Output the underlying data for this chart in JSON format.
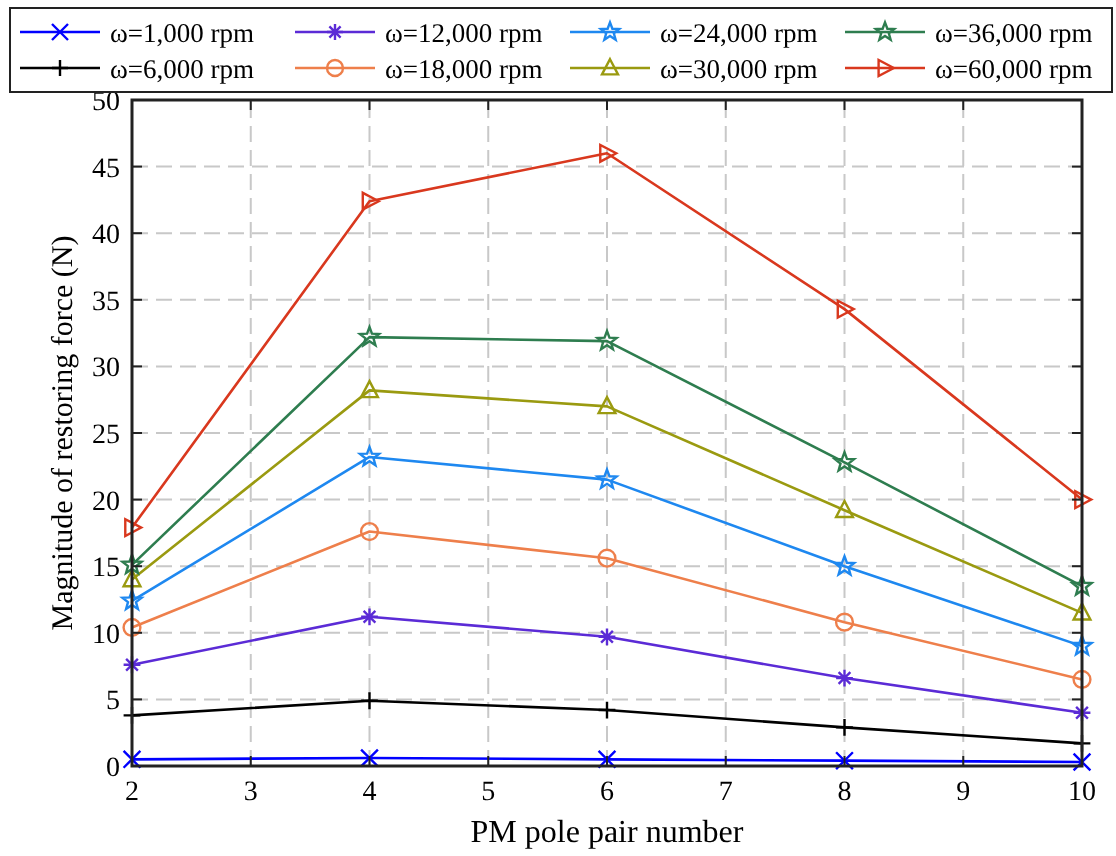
{
  "chart_data": {
    "type": "line",
    "xlabel": "PM pole pair number",
    "ylabel": "Magnitude of restoring force (N)",
    "x": [
      2,
      4,
      6,
      8,
      10
    ],
    "xlim": [
      2,
      10
    ],
    "xticks": [
      2,
      3,
      4,
      5,
      6,
      7,
      8,
      9,
      10
    ],
    "ylim": [
      0,
      50
    ],
    "yticks": [
      0,
      5,
      10,
      15,
      20,
      25,
      30,
      35,
      40,
      45,
      50
    ],
    "grid": true,
    "legend": "top",
    "line_style": "solid",
    "series": [
      {
        "name": "ω=1,000 rpm",
        "color": "#0000ff",
        "marker": "x",
        "values": [
          0.5,
          0.6,
          0.5,
          0.4,
          0.3
        ]
      },
      {
        "name": "ω=6,000 rpm",
        "color": "#000000",
        "marker": "plus",
        "values": [
          3.8,
          4.9,
          4.2,
          2.9,
          1.7
        ]
      },
      {
        "name": "ω=12,000 rpm",
        "color": "#5b2bd6",
        "marker": "cross",
        "values": [
          7.6,
          11.2,
          9.7,
          6.6,
          4.0
        ]
      },
      {
        "name": "ω=18,000 rpm",
        "color": "#ee7f4b",
        "marker": "circle",
        "values": [
          10.4,
          17.6,
          15.6,
          10.8,
          6.5
        ]
      },
      {
        "name": "ω=24,000 rpm",
        "color": "#1e88f0",
        "marker": "star",
        "values": [
          12.4,
          23.2,
          21.5,
          15.0,
          9.0
        ]
      },
      {
        "name": "ω=30,000 rpm",
        "color": "#9a9a10",
        "marker": "triangle",
        "values": [
          14.0,
          28.2,
          27.0,
          19.2,
          11.5
        ]
      },
      {
        "name": "ω=36,000 rpm",
        "color": "#2e7d4f",
        "marker": "star",
        "values": [
          15.1,
          32.2,
          31.9,
          22.8,
          13.5
        ]
      },
      {
        "name": "ω=60,000 rpm",
        "color": "#d9381e",
        "marker": "triangle-right",
        "values": [
          17.9,
          42.4,
          46.0,
          34.3,
          20.0
        ]
      }
    ]
  }
}
